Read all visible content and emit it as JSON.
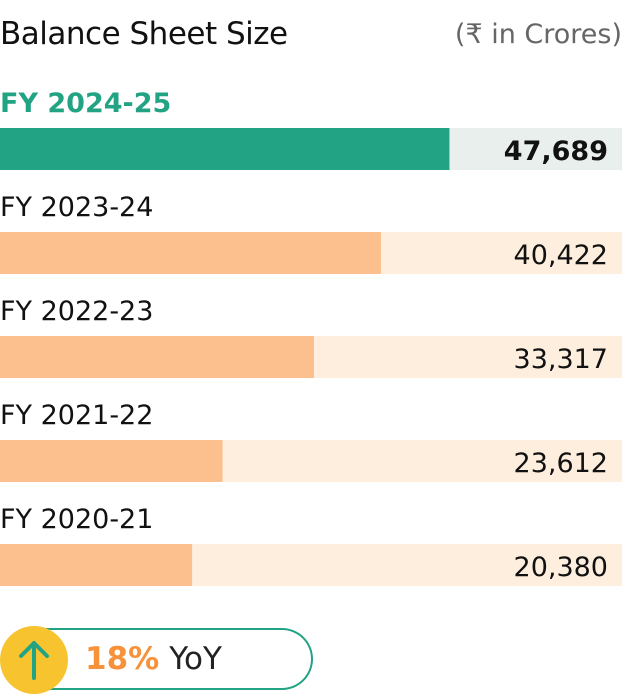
{
  "header": {
    "title": "Balance Sheet Size",
    "unit": "(₹ in Crores)"
  },
  "yoy": {
    "percent": "18%",
    "label": "YoY",
    "icon": "arrow-up-icon"
  },
  "colors": {
    "highlight_bar": "#22a383",
    "highlight_track": "#e8efec",
    "highlight_label": "#22a383",
    "bar": "#fbc08e",
    "track": "#fdeede",
    "badge": "#f7c430",
    "percent": "#f7913a"
  },
  "chart_data": {
    "type": "bar",
    "orientation": "horizontal",
    "categories": [
      "FY 2024-25",
      "FY 2023-24",
      "FY 2022-23",
      "FY 2021-22",
      "FY 2020-21"
    ],
    "values": [
      47689,
      40422,
      33317,
      23612,
      20380
    ],
    "value_labels": [
      "47,689",
      "40,422",
      "33,317",
      "23,612",
      "20,380"
    ],
    "highlight_index": 0,
    "xlim": [
      0,
      66000
    ],
    "grid": false
  }
}
